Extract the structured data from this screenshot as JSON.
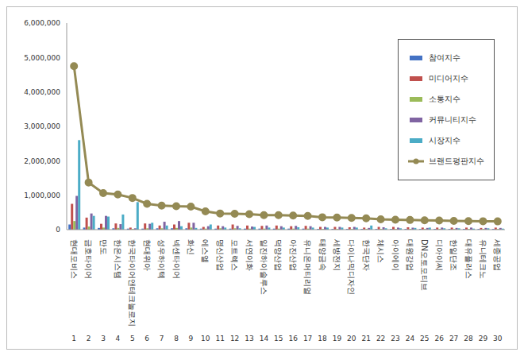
{
  "chart_data": {
    "type": "bar",
    "categories": [
      "현대모비스",
      "금호타이어",
      "만도",
      "한온시스템",
      "한국타이어앤테크놀로지",
      "현대위아",
      "성우하이텍",
      "넥센타이어",
      "화신",
      "에스엘",
      "명신산업",
      "모트렉스",
      "서연이화",
      "일진하이솔루스",
      "덕양산업",
      "아진산업",
      "유니온머티리얼",
      "태양금속",
      "세방전지",
      "다이나믹디자인",
      "한국단자",
      "체시스",
      "아이에이",
      "대원강업",
      "DN오토모티브",
      "디아이씨",
      "한일단조",
      "대유플러스",
      "유니테크노",
      "세종공업"
    ],
    "ranks": [
      1,
      2,
      3,
      4,
      5,
      6,
      7,
      8,
      9,
      10,
      11,
      12,
      13,
      14,
      15,
      16,
      17,
      18,
      19,
      20,
      21,
      22,
      23,
      24,
      25,
      26,
      27,
      28,
      29,
      30
    ],
    "series": [
      {
        "name": "참여지수",
        "color": "#4472c4",
        "type": "bar",
        "values": [
          150000,
          60000,
          50000,
          40000,
          30000,
          30000,
          40000,
          40000,
          40000,
          30000,
          30000,
          30000,
          30000,
          30000,
          30000,
          30000,
          30000,
          20000,
          20000,
          20000,
          20000,
          20000,
          20000,
          20000,
          20000,
          20000,
          20000,
          20000,
          20000,
          20000
        ]
      },
      {
        "name": "미디어지수",
        "color": "#c0504d",
        "type": "bar",
        "values": [
          750000,
          350000,
          170000,
          180000,
          60000,
          180000,
          120000,
          150000,
          200000,
          80000,
          120000,
          150000,
          120000,
          110000,
          120000,
          100000,
          110000,
          80000,
          80000,
          70000,
          60000,
          80000,
          80000,
          70000,
          60000,
          60000,
          60000,
          60000,
          50000,
          60000
        ]
      },
      {
        "name": "소통지수",
        "color": "#9bbb59",
        "type": "bar",
        "values": [
          250000,
          90000,
          60000,
          50000,
          20000,
          40000,
          40000,
          50000,
          60000,
          30000,
          40000,
          40000,
          30000,
          30000,
          30000,
          30000,
          30000,
          20000,
          20000,
          20000,
          20000,
          20000,
          20000,
          20000,
          20000,
          20000,
          20000,
          20000,
          20000,
          20000
        ]
      },
      {
        "name": "커뮤니티지수",
        "color": "#8064a2",
        "type": "bar",
        "values": [
          980000,
          470000,
          400000,
          160000,
          40000,
          170000,
          230000,
          250000,
          200000,
          100000,
          100000,
          110000,
          90000,
          120000,
          100000,
          110000,
          100000,
          80000,
          80000,
          80000,
          50000,
          70000,
          60000,
          60000,
          50000,
          60000,
          50000,
          60000,
          50000,
          50000
        ]
      },
      {
        "name": "시장지수",
        "color": "#4bacc6",
        "type": "bar",
        "values": [
          2600000,
          400000,
          380000,
          440000,
          800000,
          200000,
          120000,
          100000,
          50000,
          150000,
          60000,
          40000,
          80000,
          60000,
          60000,
          70000,
          60000,
          60000,
          60000,
          60000,
          120000,
          40000,
          40000,
          50000,
          60000,
          40000,
          40000,
          30000,
          40000,
          30000
        ]
      },
      {
        "name": "브랜드평판지수",
        "color": "#948a54",
        "type": "line",
        "marker": "circle",
        "values": [
          4750000,
          1370000,
          1060000,
          1020000,
          920000,
          750000,
          700000,
          680000,
          670000,
          530000,
          470000,
          460000,
          450000,
          420000,
          420000,
          410000,
          400000,
          360000,
          350000,
          340000,
          330000,
          300000,
          290000,
          280000,
          270000,
          265000,
          255000,
          250000,
          245000,
          240000
        ]
      }
    ],
    "ylim": [
      0,
      6000000
    ],
    "yticks": [
      0,
      {
        "value": 1000000,
        "label": "1,000,000"
      },
      {
        "value": 2000000,
        "label": "2,000,000"
      },
      {
        "value": 3000000,
        "label": "3,000,000"
      },
      {
        "value": 4000000,
        "label": "4,000,000"
      },
      {
        "value": 5000000,
        "label": "5,000,000"
      },
      {
        "value": 6000000,
        "label": "6,000,000"
      }
    ],
    "grid": false,
    "legend": "top-right"
  }
}
